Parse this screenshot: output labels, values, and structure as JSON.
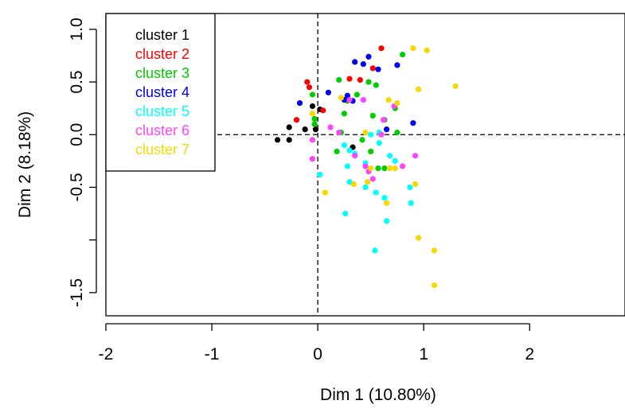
{
  "chart_data": {
    "type": "scatter",
    "title": "",
    "xlabel": "Dim 1 (10.80%)",
    "ylabel": "Dim 2 (8.18%)",
    "xlim": [
      -2,
      2.9
    ],
    "ylim": [
      -1.72,
      1.15
    ],
    "x_ticks": [
      {
        "value": -2,
        "label": "-2"
      },
      {
        "value": -1,
        "label": "-1"
      },
      {
        "value": 0,
        "label": "0"
      },
      {
        "value": 1,
        "label": "1"
      },
      {
        "value": 2,
        "label": "2"
      }
    ],
    "y_ticks": [
      {
        "value": 1.0,
        "label": "1.0"
      },
      {
        "value": 0.5,
        "label": "0.5"
      },
      {
        "value": 0.0,
        "label": "0.0"
      },
      {
        "value": -0.5,
        "label": "-0.5"
      },
      {
        "value": -1.0,
        "label": ""
      },
      {
        "value": -1.5,
        "label": "-1.5"
      }
    ],
    "reference_lines": {
      "x": 0,
      "y": 0,
      "style": "dashed"
    },
    "legend_position": "top-left",
    "series": [
      {
        "name": "cluster 1",
        "color": "#000000",
        "points": [
          [
            -0.38,
            -0.05
          ],
          [
            -0.27,
            -0.05
          ],
          [
            -0.27,
            0.07
          ],
          [
            -0.12,
            0.05
          ],
          [
            -0.02,
            0.05
          ],
          [
            -0.05,
            0.27
          ],
          [
            0.02,
            0.24
          ],
          [
            0.33,
            -0.12
          ]
        ]
      },
      {
        "name": "cluster 2",
        "color": "#ff0000",
        "points": [
          [
            -0.1,
            0.5
          ],
          [
            -0.08,
            0.45
          ],
          [
            -0.2,
            0.14
          ],
          [
            0.05,
            0.23
          ],
          [
            0.3,
            0.53
          ],
          [
            0.4,
            0.52
          ],
          [
            0.6,
            0.82
          ],
          [
            0.52,
            0.63
          ]
        ]
      },
      {
        "name": "cluster 3",
        "color": "#00cc00",
        "points": [
          [
            -0.05,
            0.38
          ],
          [
            -0.03,
            0.15
          ],
          [
            -0.03,
            0.1
          ],
          [
            0.2,
            0.52
          ],
          [
            0.25,
            0.2
          ],
          [
            0.22,
            0.02
          ],
          [
            0.37,
            0.38
          ],
          [
            0.48,
            0.5
          ],
          [
            0.55,
            0.47
          ],
          [
            0.63,
            0.14
          ],
          [
            0.73,
            0.25
          ],
          [
            0.75,
            0.02
          ],
          [
            0.8,
            0.76
          ],
          [
            0.18,
            -0.16
          ],
          [
            0.5,
            -0.16
          ],
          [
            0.42,
            -0.05
          ],
          [
            0.57,
            -0.32
          ],
          [
            0.63,
            -0.32
          ],
          [
            0.28,
            0.32
          ],
          [
            0.52,
            0.18
          ]
        ]
      },
      {
        "name": "cluster 4",
        "color": "#0000ee",
        "points": [
          [
            -0.17,
            0.3
          ],
          [
            0.1,
            0.4
          ],
          [
            0.25,
            0.33
          ],
          [
            0.33,
            0.32
          ],
          [
            0.35,
            0.69
          ],
          [
            0.43,
            0.67
          ],
          [
            0.48,
            0.74
          ],
          [
            0.57,
            0.62
          ],
          [
            0.75,
            0.66
          ],
          [
            0.65,
            0.05
          ],
          [
            0.9,
            0.11
          ],
          [
            0.28,
            0.37
          ]
        ]
      },
      {
        "name": "cluster 5",
        "color": "#00ffff",
        "points": [
          [
            0.02,
            -0.38
          ],
          [
            0.25,
            -0.1
          ],
          [
            0.28,
            -0.3
          ],
          [
            0.35,
            -0.18
          ],
          [
            0.45,
            -0.27
          ],
          [
            0.45,
            -0.5
          ],
          [
            0.5,
            0.0
          ],
          [
            0.55,
            -0.55
          ],
          [
            0.58,
            -0.08
          ],
          [
            0.63,
            -0.6
          ],
          [
            0.65,
            -0.82
          ],
          [
            0.54,
            -1.1
          ],
          [
            0.68,
            -0.2
          ],
          [
            0.87,
            -0.5
          ],
          [
            0.88,
            -0.65
          ],
          [
            0.26,
            -0.75
          ],
          [
            0.3,
            -0.45
          ],
          [
            0.58,
            0.02
          ],
          [
            0.3,
            -0.15
          ],
          [
            0.73,
            -0.25
          ]
        ]
      },
      {
        "name": "cluster 6",
        "color": "#ff44ff",
        "points": [
          [
            -0.05,
            -0.05
          ],
          [
            -0.05,
            -0.23
          ],
          [
            0.12,
            0.07
          ],
          [
            0.2,
            0.02
          ],
          [
            0.43,
            0.33
          ],
          [
            0.45,
            -0.3
          ],
          [
            0.48,
            -0.35
          ],
          [
            0.6,
            0.0
          ],
          [
            0.72,
            0.27
          ],
          [
            0.62,
            0.14
          ],
          [
            0.8,
            -0.3
          ],
          [
            0.92,
            -0.2
          ],
          [
            0.52,
            -0.42
          ],
          [
            0.35,
            -0.2
          ],
          [
            0.3,
            0.33
          ]
        ]
      },
      {
        "name": "cluster 7",
        "color": "#f5d800",
        "points": [
          [
            -0.05,
            0.2
          ],
          [
            0.07,
            -0.55
          ],
          [
            0.22,
            0.35
          ],
          [
            0.34,
            -0.47
          ],
          [
            0.47,
            -0.45
          ],
          [
            0.5,
            -0.32
          ],
          [
            0.65,
            -0.65
          ],
          [
            0.68,
            -0.32
          ],
          [
            0.67,
            0.33
          ],
          [
            0.75,
            0.3
          ],
          [
            0.9,
            0.82
          ],
          [
            0.95,
            0.43
          ],
          [
            1.03,
            0.8
          ],
          [
            1.3,
            0.46
          ],
          [
            0.92,
            -0.47
          ],
          [
            0.95,
            -0.98
          ],
          [
            1.1,
            -1.1
          ],
          [
            1.1,
            -1.43
          ],
          [
            0.73,
            -0.32
          ],
          [
            0.45,
            0.02
          ]
        ]
      }
    ]
  }
}
